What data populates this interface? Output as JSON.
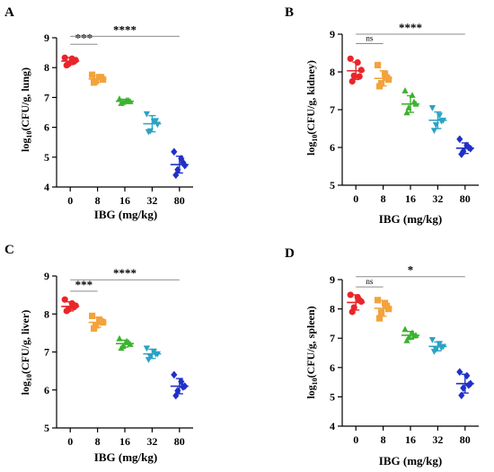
{
  "palette": {
    "axis": "#000000",
    "bracket": "#8c8c8c"
  },
  "chart_data": [
    {
      "type": "scatter",
      "panel_label": "A",
      "xlabel": "IBG (mg/kg)",
      "ylabel_sub": "10",
      "ylabel_main": "(CFU/g, lung)",
      "ylim": [
        4,
        9
      ],
      "yticks": [
        4,
        5,
        6,
        7,
        8,
        9
      ],
      "categories": [
        "0",
        "8",
        "16",
        "32",
        "80"
      ],
      "colors": [
        "#e8262a",
        "#f3a33c",
        "#3db22f",
        "#2aa3c4",
        "#2030c8"
      ],
      "markers": [
        "circle",
        "square",
        "triangle",
        "invtriangle",
        "diamond"
      ],
      "groups": [
        {
          "mean": 8.22,
          "sd": 0.12,
          "points": [
            8.33,
            8.3,
            8.25,
            8.12,
            8.08,
            8.2
          ]
        },
        {
          "mean": 7.62,
          "sd": 0.11,
          "points": [
            7.76,
            7.68,
            7.6,
            7.55,
            7.5,
            7.68
          ]
        },
        {
          "mean": 6.87,
          "sd": 0.07,
          "points": [
            6.95,
            6.9,
            6.86,
            6.84,
            6.8,
            6.9
          ]
        },
        {
          "mean": 6.12,
          "sd": 0.27,
          "points": [
            6.45,
            6.2,
            6.1,
            5.88,
            5.85,
            6.22
          ]
        },
        {
          "mean": 4.75,
          "sd": 0.28,
          "points": [
            5.18,
            4.95,
            4.72,
            4.58,
            4.4,
            4.82
          ]
        }
      ],
      "brackets": [
        {
          "from": 0,
          "to": 1,
          "y": 8.78,
          "label": "***",
          "label_size": 13
        },
        {
          "from": 0,
          "to": 4,
          "y": 9.05,
          "label": "****",
          "label_size": 13
        }
      ]
    },
    {
      "type": "scatter",
      "panel_label": "B",
      "xlabel": "IBG (mg/kg)",
      "ylabel_sub": "10",
      "ylabel_main": "(CFU/g, kidney)",
      "ylim": [
        5,
        9
      ],
      "yticks": [
        5,
        6,
        7,
        8,
        9
      ],
      "categories": [
        "0",
        "8",
        "16",
        "32",
        "80"
      ],
      "colors": [
        "#e8262a",
        "#f3a33c",
        "#3db22f",
        "#2aa3c4",
        "#2030c8"
      ],
      "markers": [
        "circle",
        "square",
        "triangle",
        "invtriangle",
        "diamond"
      ],
      "groups": [
        {
          "mean": 8.03,
          "sd": 0.23,
          "points": [
            8.35,
            8.25,
            8.05,
            7.9,
            7.75,
            7.88
          ]
        },
        {
          "mean": 7.83,
          "sd": 0.2,
          "points": [
            8.18,
            7.95,
            7.8,
            7.7,
            7.62,
            7.85
          ]
        },
        {
          "mean": 7.15,
          "sd": 0.22,
          "points": [
            7.5,
            7.38,
            7.15,
            7.05,
            6.92,
            7.2
          ]
        },
        {
          "mean": 6.72,
          "sd": 0.22,
          "points": [
            7.05,
            6.85,
            6.72,
            6.6,
            6.45,
            6.7
          ]
        },
        {
          "mean": 5.98,
          "sd": 0.14,
          "points": [
            6.22,
            6.05,
            5.97,
            5.9,
            5.82,
            6.0
          ]
        }
      ],
      "brackets": [
        {
          "from": 0,
          "to": 1,
          "y": 8.75,
          "label": "ns",
          "label_size": 9
        },
        {
          "from": 0,
          "to": 4,
          "y": 9.0,
          "label": "****",
          "label_size": 13
        }
      ]
    },
    {
      "type": "scatter",
      "panel_label": "C",
      "xlabel": "IBG (mg/kg)",
      "ylabel_sub": "10",
      "ylabel_main": "(CFU/g, liver)",
      "ylim": [
        5,
        9
      ],
      "yticks": [
        5,
        6,
        7,
        8,
        9
      ],
      "categories": [
        "0",
        "8",
        "16",
        "32",
        "80"
      ],
      "colors": [
        "#e8262a",
        "#f3a33c",
        "#3db22f",
        "#2aa3c4",
        "#2030c8"
      ],
      "markers": [
        "circle",
        "square",
        "triangle",
        "invtriangle",
        "diamond"
      ],
      "groups": [
        {
          "mean": 8.2,
          "sd": 0.12,
          "points": [
            8.38,
            8.28,
            8.22,
            8.12,
            8.08,
            8.18
          ]
        },
        {
          "mean": 7.78,
          "sd": 0.13,
          "points": [
            7.95,
            7.85,
            7.78,
            7.7,
            7.62,
            7.8
          ]
        },
        {
          "mean": 7.22,
          "sd": 0.09,
          "points": [
            7.35,
            7.28,
            7.2,
            7.15,
            7.1,
            7.25
          ]
        },
        {
          "mean": 6.95,
          "sd": 0.12,
          "points": [
            7.1,
            7.02,
            6.95,
            6.88,
            6.8,
            6.95
          ]
        },
        {
          "mean": 6.1,
          "sd": 0.2,
          "points": [
            6.4,
            6.22,
            6.1,
            5.98,
            5.85,
            6.08
          ]
        }
      ],
      "brackets": [
        {
          "from": 0,
          "to": 1,
          "y": 8.6,
          "label": "***",
          "label_size": 13
        },
        {
          "from": 0,
          "to": 4,
          "y": 8.9,
          "label": "****",
          "label_size": 13
        }
      ]
    },
    {
      "type": "scatter",
      "panel_label": "D",
      "xlabel": "IBG (mg/kg)",
      "ylabel_sub": "10",
      "ylabel_main": "(CFU/g, spleen)",
      "ylim": [
        4,
        9
      ],
      "yticks": [
        4,
        5,
        6,
        7,
        8,
        9
      ],
      "categories": [
        "0",
        "8",
        "16",
        "32",
        "80"
      ],
      "colors": [
        "#e8262a",
        "#f3a33c",
        "#3db22f",
        "#2aa3c4",
        "#2030c8"
      ],
      "markers": [
        "circle",
        "square",
        "triangle",
        "invtriangle",
        "diamond"
      ],
      "groups": [
        {
          "mean": 8.22,
          "sd": 0.26,
          "points": [
            8.48,
            8.4,
            8.25,
            8.05,
            7.9,
            8.3
          ]
        },
        {
          "mean": 8.02,
          "sd": 0.27,
          "points": [
            8.3,
            8.2,
            8.0,
            7.88,
            7.68,
            8.1
          ]
        },
        {
          "mean": 7.1,
          "sd": 0.13,
          "points": [
            7.3,
            7.18,
            7.1,
            7.02,
            6.92,
            7.08
          ]
        },
        {
          "mean": 6.72,
          "sd": 0.15,
          "points": [
            6.95,
            6.82,
            6.72,
            6.62,
            6.55,
            6.68
          ]
        },
        {
          "mean": 5.45,
          "sd": 0.32,
          "points": [
            5.85,
            5.72,
            5.45,
            5.3,
            5.05,
            5.4
          ]
        }
      ],
      "brackets": [
        {
          "from": 0,
          "to": 1,
          "y": 8.75,
          "label": "ns",
          "label_size": 9
        },
        {
          "from": 0,
          "to": 4,
          "y": 9.1,
          "label": "*",
          "label_size": 13
        }
      ]
    }
  ]
}
